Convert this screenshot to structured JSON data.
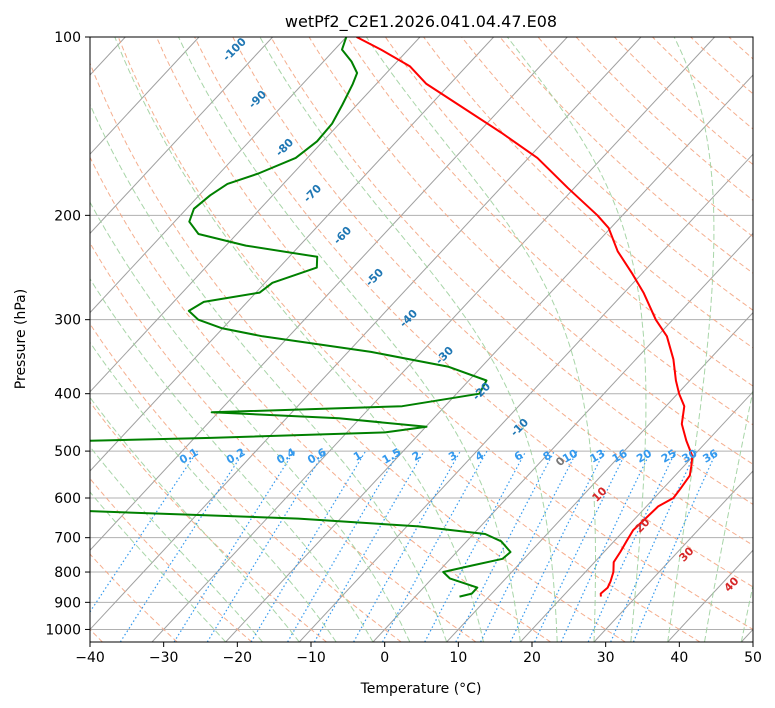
{
  "chart_data": {
    "type": "line",
    "title": "wetPf2_C2E1.2026.041.04.47.E08",
    "xlabel": "Temperature (°C)",
    "ylabel": "Pressure (hPa)",
    "xlim": [
      -40,
      50
    ],
    "ylim": [
      1050,
      100
    ],
    "y_scale": "log",
    "x_ticks": [
      -40,
      -30,
      -20,
      -10,
      0,
      10,
      20,
      30,
      40,
      50
    ],
    "y_ticks": [
      100,
      200,
      300,
      400,
      500,
      600,
      700,
      800,
      900,
      1000
    ],
    "grid": true,
    "skew": true,
    "colors": {
      "temperature": "#ff0000",
      "dewpoint": "#008000",
      "isotherm": "#a0a0a0",
      "dry_adiabat": "#f4a582",
      "moist_adiabat": "#9fd09f",
      "mixing_ratio": "#3399ee",
      "height_label": "#1f77b4",
      "temp_label": "#d62728"
    },
    "height_labels": [
      "-100",
      "-90",
      "-80",
      "-70",
      "-60",
      "-50",
      "-40",
      "-30",
      "-20",
      "-10",
      "0",
      "10",
      "20",
      "30",
      "40"
    ],
    "mixing_ratio_labels": [
      "0.1",
      "0.2",
      "0.4",
      "0.6",
      "1",
      "1.5",
      "2",
      "3",
      "4",
      "6",
      "8",
      "10",
      "13",
      "16",
      "20",
      "25",
      "30",
      "36"
    ],
    "series": [
      {
        "role": "temperature",
        "points": [
          {
            "p": 880,
            "t": 25.2
          },
          {
            "p": 870,
            "t": 24.8
          },
          {
            "p": 850,
            "t": 25.0
          },
          {
            "p": 830,
            "t": 24.6
          },
          {
            "p": 800,
            "t": 23.8
          },
          {
            "p": 770,
            "t": 22.6
          },
          {
            "p": 740,
            "t": 22.2
          },
          {
            "p": 710,
            "t": 21.7
          },
          {
            "p": 680,
            "t": 21.2
          },
          {
            "p": 650,
            "t": 21.4
          },
          {
            "p": 620,
            "t": 21.6
          },
          {
            "p": 600,
            "t": 22.6
          },
          {
            "p": 580,
            "t": 22.4
          },
          {
            "p": 550,
            "t": 22.0
          },
          {
            "p": 530,
            "t": 21.0
          },
          {
            "p": 510,
            "t": 19.9
          },
          {
            "p": 480,
            "t": 17.1
          },
          {
            "p": 450,
            "t": 14.4
          },
          {
            "p": 420,
            "t": 12.5
          },
          {
            "p": 400,
            "t": 10.2
          },
          {
            "p": 380,
            "t": 8.1
          },
          {
            "p": 350,
            "t": 5.1
          },
          {
            "p": 320,
            "t": 1.3
          },
          {
            "p": 300,
            "t": -2.3
          },
          {
            "p": 270,
            "t": -7.4
          },
          {
            "p": 250,
            "t": -11.5
          },
          {
            "p": 230,
            "t": -16.1
          },
          {
            "p": 210,
            "t": -20.3
          },
          {
            "p": 200,
            "t": -23.4
          },
          {
            "p": 180,
            "t": -30.8
          },
          {
            "p": 160,
            "t": -38.8
          },
          {
            "p": 145,
            "t": -46.9
          },
          {
            "p": 130,
            "t": -56.3
          },
          {
            "p": 120,
            "t": -63.2
          },
          {
            "p": 112,
            "t": -67.7
          },
          {
            "p": 105,
            "t": -73.7
          },
          {
            "p": 100,
            "t": -78.6
          }
        ]
      },
      {
        "role": "dewpoint",
        "points": [
          {
            "p": 880,
            "t": 6.0
          },
          {
            "p": 870,
            "t": 7.3
          },
          {
            "p": 850,
            "t": 7.3
          },
          {
            "p": 820,
            "t": 2.4
          },
          {
            "p": 800,
            "t": 0.7
          },
          {
            "p": 780,
            "t": 3.8
          },
          {
            "p": 760,
            "t": 7.1
          },
          {
            "p": 740,
            "t": 7.3
          },
          {
            "p": 710,
            "t": 4.7
          },
          {
            "p": 690,
            "t": 1.6
          },
          {
            "p": 670,
            "t": -8.4
          },
          {
            "p": 650,
            "t": -25.7
          },
          {
            "p": 630,
            "t": -57.0
          },
          {
            "p": 520,
            "t": -99.0
          },
          {
            "p": 490,
            "t": -93.0
          },
          {
            "p": 475,
            "t": -47.8
          },
          {
            "p": 465,
            "t": -24.8
          },
          {
            "p": 455,
            "t": -19.9
          },
          {
            "p": 440,
            "t": -32.9
          },
          {
            "p": 430,
            "t": -50.9
          },
          {
            "p": 420,
            "t": -25.8
          },
          {
            "p": 400,
            "t": -16.9
          },
          {
            "p": 380,
            "t": -17.6
          },
          {
            "p": 360,
            "t": -24.6
          },
          {
            "p": 340,
            "t": -36.9
          },
          {
            "p": 320,
            "t": -53.6
          },
          {
            "p": 310,
            "t": -60.2
          },
          {
            "p": 300,
            "t": -64.4
          },
          {
            "p": 290,
            "t": -66.8
          },
          {
            "p": 280,
            "t": -65.9
          },
          {
            "p": 270,
            "t": -59.5
          },
          {
            "p": 260,
            "t": -59.0
          },
          {
            "p": 245,
            "t": -54.9
          },
          {
            "p": 235,
            "t": -56.2
          },
          {
            "p": 225,
            "t": -67.3
          },
          {
            "p": 215,
            "t": -75.2
          },
          {
            "p": 205,
            "t": -78.0
          },
          {
            "p": 195,
            "t": -79.0
          },
          {
            "p": 185,
            "t": -78.5
          },
          {
            "p": 177,
            "t": -77.6
          },
          {
            "p": 170,
            "t": -74.7
          },
          {
            "p": 160,
            "t": -71.6
          },
          {
            "p": 150,
            "t": -70.8
          },
          {
            "p": 140,
            "t": -71.0
          },
          {
            "p": 130,
            "t": -72.0
          },
          {
            "p": 120,
            "t": -73.2
          },
          {
            "p": 115,
            "t": -74.0
          },
          {
            "p": 110,
            "t": -76.2
          },
          {
            "p": 105,
            "t": -79.0
          },
          {
            "p": 100,
            "t": -80.0
          }
        ]
      }
    ]
  }
}
